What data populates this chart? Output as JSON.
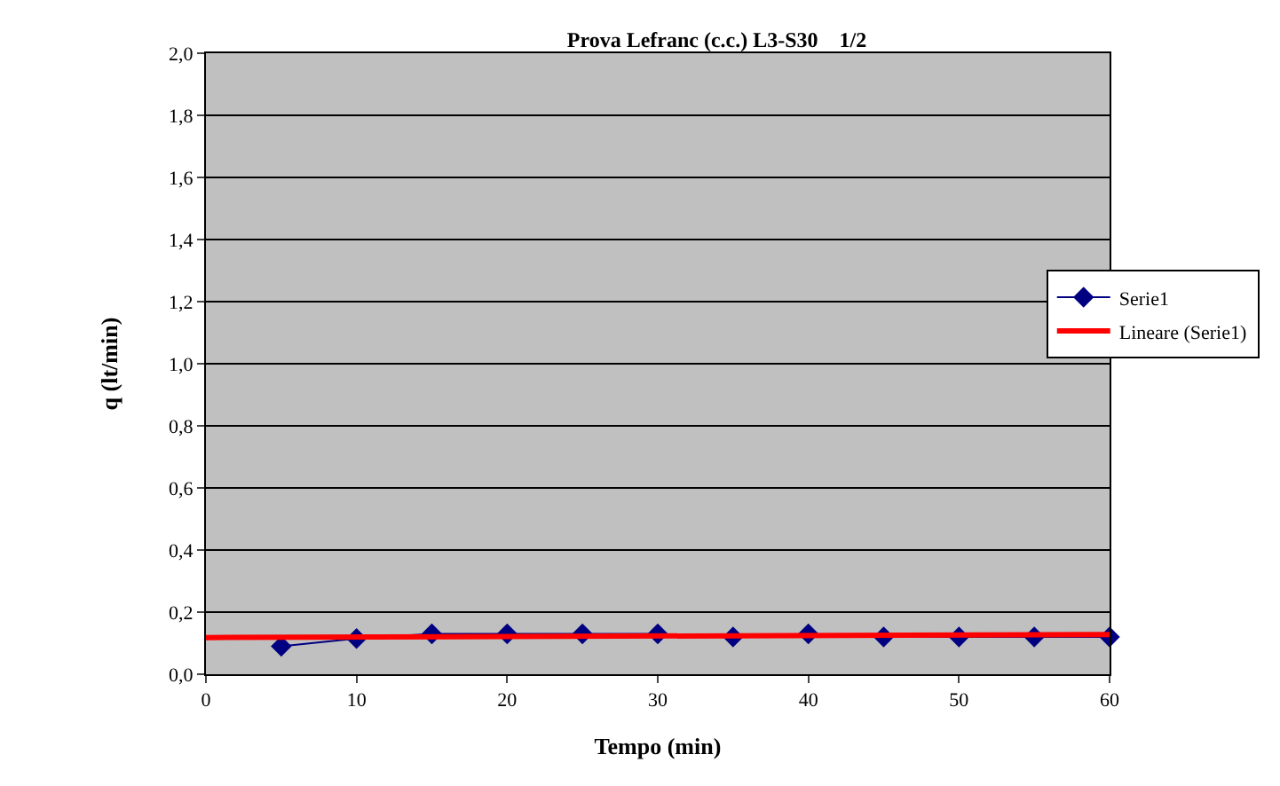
{
  "chart_data": {
    "type": "line",
    "title": "Prova Lefranc (c.c.) L3-S30    1/2",
    "xlabel": "Tempo (min)",
    "ylabel": "q (lt/min)",
    "x": [
      5,
      10,
      15,
      20,
      25,
      30,
      35,
      40,
      45,
      50,
      55,
      60
    ],
    "series": [
      {
        "name": "Serie1",
        "color": "#000080",
        "values": [
          0.09,
          0.115,
          0.13,
          0.13,
          0.13,
          0.13,
          0.12,
          0.13,
          0.12,
          0.12,
          0.12,
          0.12
        ],
        "marker": "diamond"
      },
      {
        "name": "Lineare (Serie1)",
        "color": "#ff0000",
        "type": "line",
        "x": [
          0,
          60
        ],
        "values": [
          0.118,
          0.128
        ],
        "marker": "none"
      }
    ],
    "xlim": [
      0,
      60
    ],
    "xticks": [
      0,
      10,
      20,
      30,
      40,
      50,
      60
    ],
    "ylim": [
      0,
      2
    ],
    "yticks": [
      {
        "value": 0,
        "label": "0,0"
      },
      {
        "value": 0.2,
        "label": "0,2"
      },
      {
        "value": 0.4,
        "label": "0,4"
      },
      {
        "value": 0.6,
        "label": "0,6"
      },
      {
        "value": 0.8,
        "label": "0,8"
      },
      {
        "value": 1.0,
        "label": "1,0"
      },
      {
        "value": 1.2,
        "label": "1,2"
      },
      {
        "value": 1.4,
        "label": "1,4"
      },
      {
        "value": 1.6,
        "label": "1,6"
      },
      {
        "value": 1.8,
        "label": "1,8"
      },
      {
        "value": 2.0,
        "label": "2,0"
      }
    ],
    "grid": "y",
    "legend": "right"
  }
}
